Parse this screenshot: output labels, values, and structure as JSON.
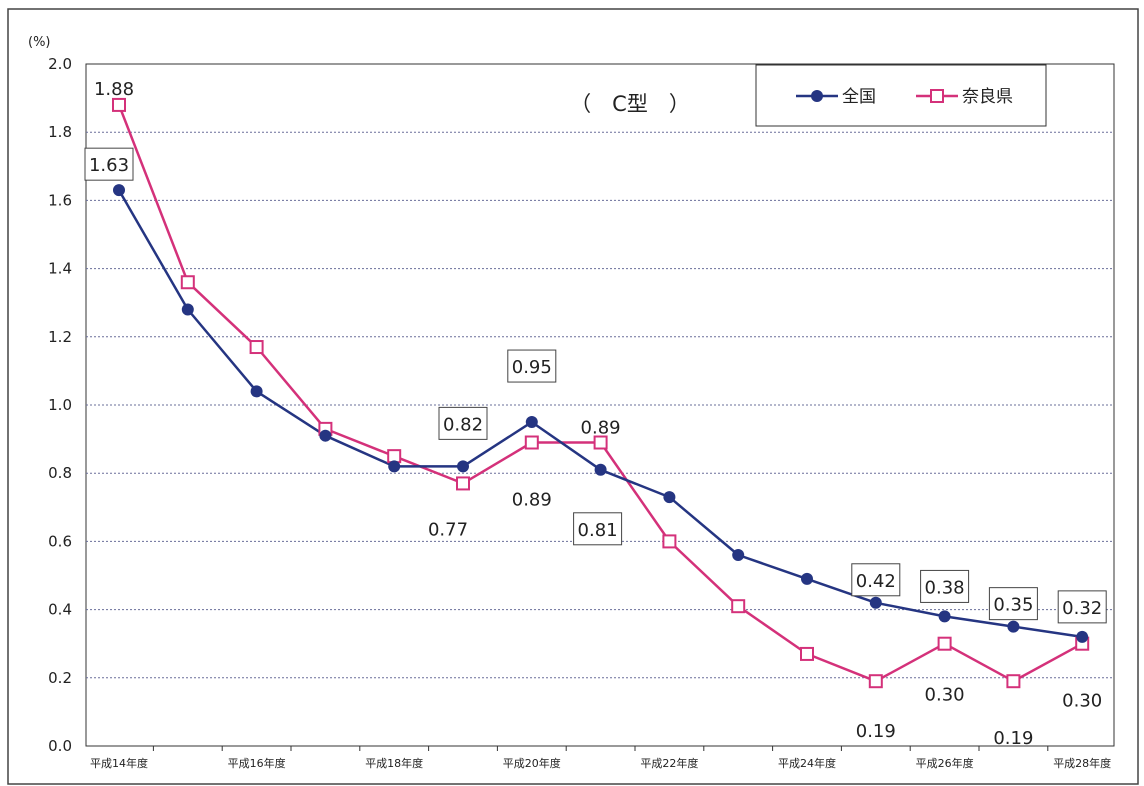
{
  "chart_data": {
    "type": "line",
    "title": "（　C型　）",
    "y_unit": "(%)",
    "ylim": [
      0,
      2.0
    ],
    "y_ticks": [
      "0.0",
      "0.2",
      "0.4",
      "0.6",
      "0.8",
      "1.0",
      "1.2",
      "1.4",
      "1.6",
      "1.8",
      "2.0"
    ],
    "y_tick_values": [
      0,
      0.2,
      0.4,
      0.6,
      0.8,
      1.0,
      1.2,
      1.4,
      1.6,
      1.8,
      2.0
    ],
    "x_tick_labels": [
      "平成14年度",
      "平成16年度",
      "平成18年度",
      "平成20年度",
      "平成22年度",
      "平成24年度",
      "平成26年度",
      "平成28年度"
    ],
    "x_tick_indices": [
      0,
      2,
      4,
      6,
      8,
      10,
      12,
      14
    ],
    "grid": "horizontal dotted",
    "legend_position": "top-right",
    "series": [
      {
        "name": "全国",
        "color": "#253582",
        "marker": "filled-circle",
        "values": [
          1.63,
          1.28,
          1.04,
          0.91,
          0.82,
          0.82,
          0.95,
          0.81,
          0.73,
          0.56,
          0.49,
          0.42,
          0.38,
          0.35,
          0.32
        ]
      },
      {
        "name": "奈良県",
        "color": "#d4317a",
        "marker": "open-square",
        "values": [
          1.88,
          1.36,
          1.17,
          0.93,
          0.85,
          0.77,
          0.89,
          0.89,
          0.6,
          0.41,
          0.27,
          0.19,
          0.3,
          0.19,
          0.3
        ]
      }
    ],
    "data_labels": [
      {
        "text": "1.88",
        "series": 1,
        "index": 0,
        "boxed": false
      },
      {
        "text": "1.63",
        "series": 0,
        "index": 0,
        "boxed": true
      },
      {
        "text": "0.82",
        "series": 0,
        "index": 5,
        "boxed": true
      },
      {
        "text": "0.77",
        "series": 1,
        "index": 5,
        "boxed": false
      },
      {
        "text": "0.95",
        "series": 0,
        "index": 6,
        "boxed": true
      },
      {
        "text": "0.89",
        "series": 1,
        "index": 6,
        "boxed": false
      },
      {
        "text": "0.89",
        "series": 1,
        "index": 7,
        "boxed": false
      },
      {
        "text": "0.81",
        "series": 0,
        "index": 7,
        "boxed": true
      },
      {
        "text": "0.42",
        "series": 0,
        "index": 11,
        "boxed": true
      },
      {
        "text": "0.19",
        "series": 1,
        "index": 11,
        "boxed": false
      },
      {
        "text": "0.38",
        "series": 0,
        "index": 12,
        "boxed": true
      },
      {
        "text": "0.30",
        "series": 1,
        "index": 12,
        "boxed": false
      },
      {
        "text": "0.35",
        "series": 0,
        "index": 13,
        "boxed": true
      },
      {
        "text": "0.19",
        "series": 1,
        "index": 13,
        "boxed": false
      },
      {
        "text": "0.32",
        "series": 0,
        "index": 14,
        "boxed": true
      },
      {
        "text": "0.30",
        "series": 1,
        "index": 14,
        "boxed": false
      }
    ]
  }
}
